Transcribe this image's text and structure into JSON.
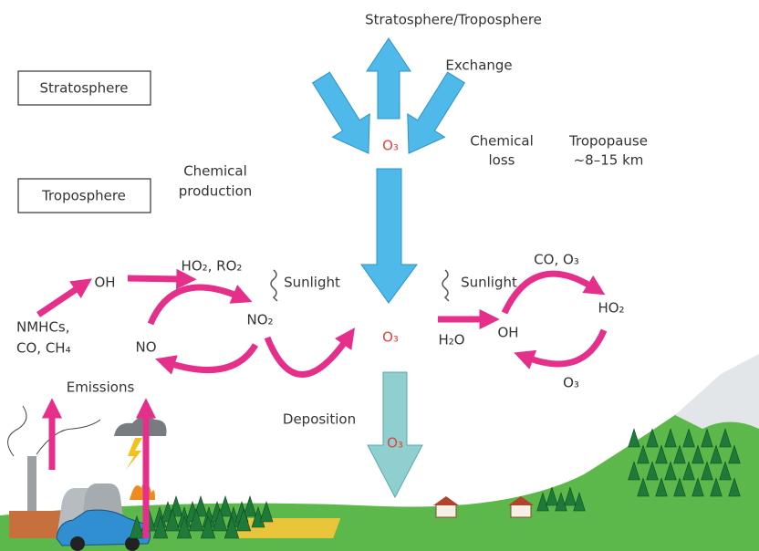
{
  "title": "Stratosphere/Troposphere",
  "exchange": "Exchange",
  "boxes": {
    "stratosphere": "Stratosphere",
    "troposphere": "Troposphere"
  },
  "chemical_production": [
    "Chemical",
    "production"
  ],
  "chemical_loss": [
    "Chemical",
    "loss"
  ],
  "tropopause": [
    "Tropopause",
    "~8–15 km"
  ],
  "ozone_labels": [
    "O₃",
    "O₃",
    "O₃"
  ],
  "left_cycle": {
    "oh": "OH",
    "peroxy": "HO₂, RO₂",
    "sunlight": "Sunlight",
    "no2": "NO₂",
    "no": "NO",
    "precursors": [
      "NMHCs,",
      "CO, CH₄"
    ],
    "emissions": "Emissions"
  },
  "deposition": "Deposition",
  "right_cycle": {
    "sunlight": "Sunlight",
    "h2o": "H₂O",
    "oh": "OH",
    "co_o3": "CO, O₃",
    "ho2": "HO₂",
    "o3": "O₃"
  }
}
